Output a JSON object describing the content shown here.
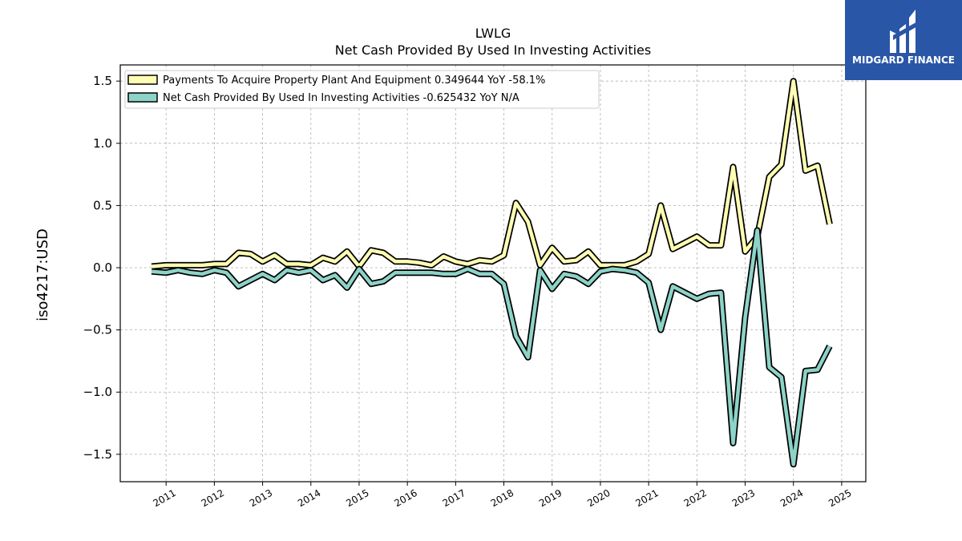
{
  "chart_data": {
    "type": "line",
    "title": "LWLG",
    "subtitle": "Net Cash Provided By Used In Investing Activities",
    "xlabel": "",
    "ylabel": "iso4217:USD",
    "xlim": [
      2010.05,
      2025.5
    ],
    "ylim": [
      -1.72,
      1.63
    ],
    "x_ticks": [
      "2011",
      "2012",
      "2013",
      "2014",
      "2015",
      "2016",
      "2017",
      "2018",
      "2019",
      "2020",
      "2021",
      "2022",
      "2023",
      "2024",
      "2025"
    ],
    "y_ticks": [
      "−1.5",
      "−1.0",
      "−0.5",
      "0.0",
      "0.5",
      "1.0",
      "1.5"
    ],
    "y_tick_values": [
      -1.5,
      -1.0,
      -0.5,
      0.0,
      0.5,
      1.0,
      1.5
    ],
    "grid": true,
    "legend_position": "top-left",
    "series": [
      {
        "name": "Payments To Acquire Property Plant And Equipment",
        "legend": "Payments To Acquire Property Plant And Equipment  0.349644 YoY -58.1%",
        "color": "#ffffb3",
        "x": [
          2010.7,
          2011.0,
          2011.25,
          2011.5,
          2011.75,
          2012.0,
          2012.25,
          2012.5,
          2012.75,
          2013.0,
          2013.25,
          2013.5,
          2013.75,
          2014.0,
          2014.25,
          2014.5,
          2014.75,
          2015.0,
          2015.25,
          2015.5,
          2015.75,
          2016.0,
          2016.25,
          2016.5,
          2016.75,
          2017.0,
          2017.25,
          2017.5,
          2017.75,
          2018.0,
          2018.25,
          2018.5,
          2018.75,
          2019.0,
          2019.25,
          2019.5,
          2019.75,
          2020.0,
          2020.25,
          2020.5,
          2020.75,
          2021.0,
          2021.25,
          2021.5,
          2021.75,
          2022.0,
          2022.25,
          2022.5,
          2022.75,
          2023.0,
          2023.25,
          2023.5,
          2023.75,
          2024.0,
          2024.25,
          2024.5,
          2024.75
        ],
        "values": [
          0.01,
          0.02,
          0.02,
          0.02,
          0.02,
          0.03,
          0.03,
          0.12,
          0.11,
          0.05,
          0.1,
          0.03,
          0.03,
          0.02,
          0.08,
          0.05,
          0.13,
          0.01,
          0.14,
          0.12,
          0.05,
          0.05,
          0.04,
          0.02,
          0.09,
          0.05,
          0.03,
          0.06,
          0.05,
          0.1,
          0.52,
          0.37,
          0.02,
          0.16,
          0.05,
          0.06,
          0.13,
          0.02,
          0.02,
          0.02,
          0.05,
          0.11,
          0.5,
          0.15,
          0.2,
          0.25,
          0.18,
          0.18,
          0.81,
          0.13,
          0.25,
          0.73,
          0.83,
          1.5,
          0.78,
          0.82,
          0.35
        ]
      },
      {
        "name": "Net Cash Provided By Used In Investing Activities",
        "legend": "Net Cash Provided By Used In Investing Activities  -0.625432 YoY N/A",
        "color": "#8dd3c7",
        "x": [
          2010.7,
          2011.0,
          2011.25,
          2011.5,
          2011.75,
          2012.0,
          2012.25,
          2012.5,
          2012.75,
          2013.0,
          2013.25,
          2013.5,
          2013.75,
          2014.0,
          2014.25,
          2014.5,
          2014.75,
          2015.0,
          2015.25,
          2015.5,
          2015.75,
          2016.0,
          2016.25,
          2016.5,
          2016.75,
          2017.0,
          2017.25,
          2017.5,
          2017.75,
          2018.0,
          2018.25,
          2018.5,
          2018.75,
          2019.0,
          2019.25,
          2019.5,
          2019.75,
          2020.0,
          2020.25,
          2020.5,
          2020.75,
          2021.0,
          2021.25,
          2021.5,
          2021.75,
          2022.0,
          2022.25,
          2022.5,
          2022.75,
          2023.0,
          2023.25,
          2023.5,
          2023.75,
          2024.0,
          2024.25,
          2024.5,
          2024.75
        ],
        "values": [
          -0.03,
          -0.04,
          -0.02,
          -0.04,
          -0.05,
          -0.02,
          -0.04,
          -0.15,
          -0.1,
          -0.05,
          -0.1,
          -0.02,
          -0.04,
          -0.02,
          -0.1,
          -0.06,
          -0.16,
          -0.01,
          -0.13,
          -0.11,
          -0.04,
          -0.04,
          -0.04,
          -0.04,
          -0.05,
          -0.05,
          -0.01,
          -0.05,
          -0.05,
          -0.13,
          -0.55,
          -0.72,
          -0.02,
          -0.17,
          -0.05,
          -0.07,
          -0.13,
          -0.03,
          -0.01,
          -0.02,
          -0.04,
          -0.12,
          -0.5,
          -0.15,
          -0.2,
          -0.25,
          -0.21,
          -0.2,
          -1.41,
          -0.4,
          0.3,
          -0.8,
          -0.88,
          -1.58,
          -0.83,
          -0.82,
          -0.63
        ]
      }
    ]
  },
  "logo": {
    "text": "MIDGARD FINANCE",
    "background": "#2a56a8"
  }
}
